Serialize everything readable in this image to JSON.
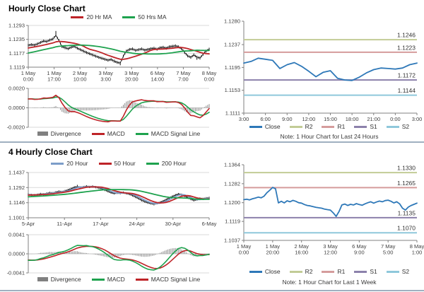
{
  "separators": {
    "color": "#9fb0c0"
  },
  "chart_data": [
    {
      "type": "candlestick",
      "title": "Hourly Close Chart",
      "ylim": [
        1.1119,
        1.1293
      ],
      "yticks": [
        1.1293,
        1.1235,
        1.1177,
        1.1119
      ],
      "x_labels": [
        [
          "1 May",
          "0:00"
        ],
        [
          "1 May",
          "17:00"
        ],
        [
          "2 May",
          "10:00"
        ],
        [
          "3 May",
          "3:00"
        ],
        [
          "3 May",
          "20:00"
        ],
        [
          "6 May",
          "14:00"
        ],
        [
          "7 May",
          "7:00"
        ],
        [
          "8 May",
          "0:00"
        ]
      ],
      "close": [
        1.121,
        1.1213,
        1.1211,
        1.1216,
        1.1222,
        1.1228,
        1.1226,
        1.1232,
        1.1236,
        1.1252,
        1.123,
        1.1205,
        1.12,
        1.1196,
        1.1202,
        1.1206,
        1.1198,
        1.1192,
        1.1186,
        1.118,
        1.1175,
        1.117,
        1.1165,
        1.116,
        1.1156,
        1.1152,
        1.1148,
        1.1151,
        1.1144,
        1.1139,
        1.1136,
        1.1165,
        1.1186,
        1.1193,
        1.1195,
        1.1189,
        1.1192,
        1.1195,
        1.119,
        1.1193,
        1.1196,
        1.1198,
        1.1194,
        1.12,
        1.1202,
        1.1198,
        1.1204,
        1.1206,
        1.1208,
        1.1204,
        1.1196,
        1.118,
        1.1166,
        1.116,
        1.117,
        1.1161,
        1.1157,
        1.1173,
        1.1186,
        1.1194
      ],
      "spikes": [
        {
          "i": 9,
          "hi": 1.127
        },
        {
          "i": 30,
          "lo": 1.1127
        },
        {
          "i": 55,
          "lo": 1.115
        }
      ],
      "ma_windows": [
        10,
        25
      ],
      "ma_seed": [
        1.114,
        1.1143,
        1.1146,
        1.1149,
        1.1152,
        1.1155,
        1.1158,
        1.1161,
        1.1164,
        1.1167,
        1.117,
        1.1173,
        1.1176,
        1.1179,
        1.1182,
        1.1185,
        1.1188,
        1.1191,
        1.1194,
        1.1196,
        1.1198,
        1.12,
        1.1202,
        1.1204,
        1.1206
      ],
      "legend": [
        {
          "label": "20 Hr MA",
          "color": "#be2428"
        },
        {
          "label": "50 Hrs MA",
          "color": "#1ea24e"
        }
      ],
      "macd": {
        "fast": 6,
        "slow": 13,
        "signal_period": 5,
        "fit": 0.72,
        "ylim": [
          -0.002,
          0.002
        ],
        "yticks": [
          0.002,
          0.0,
          -0.002
        ]
      },
      "macd_legend": [
        {
          "label": "Divergence",
          "color": "#808080",
          "bar": true
        },
        {
          "label": "MACD",
          "color": "#be2428"
        },
        {
          "label": "MACD Signal Line",
          "color": "#1ea24e"
        }
      ]
    },
    {
      "type": "line",
      "ylim": [
        1.1111,
        1.128
      ],
      "yticks": [
        1.128,
        1.1237,
        1.1195,
        1.1153,
        1.1111
      ],
      "x_labels": [
        "3:00",
        "6:00",
        "9:00",
        "12:00",
        "15:00",
        "18:00",
        "21:00",
        "0:00",
        "3:00"
      ],
      "close": [
        1.1203,
        1.1206,
        1.1212,
        1.121,
        1.1208,
        1.1193,
        1.12,
        1.1204,
        1.1197,
        1.1188,
        1.1178,
        1.1186,
        1.1189,
        1.1175,
        1.1172,
        1.1171,
        1.1177,
        1.1185,
        1.1191,
        1.1194,
        1.1193,
        1.1192,
        1.1194,
        1.12,
        1.1203
      ],
      "pivots": [
        {
          "name": "R2",
          "value": 1.1246,
          "color": "#c2cc96"
        },
        {
          "name": "R1",
          "value": 1.1223,
          "color": "#d59c9c"
        },
        {
          "name": "S1",
          "value": 1.1172,
          "color": "#8c81ab"
        },
        {
          "name": "S2",
          "value": 1.1144,
          "color": "#8fc8db"
        }
      ],
      "legend": [
        {
          "label": "Close",
          "color": "#2e78b8"
        },
        {
          "label": "R2",
          "color": "#c2cc96"
        },
        {
          "label": "R1",
          "color": "#d59c9c"
        },
        {
          "label": "S1",
          "color": "#8c81ab"
        },
        {
          "label": "S2",
          "color": "#8fc8db"
        }
      ],
      "note": "Note: 1 Hour Chart for Last 24 Hours"
    },
    {
      "type": "candlestick",
      "title": "4 Hourly Close Chart",
      "ylim": [
        1.1001,
        1.1437
      ],
      "yticks": [
        1.1437,
        1.1292,
        1.1146,
        1.1001
      ],
      "x_labels": [
        "5-Apr",
        "11-Apr",
        "17-Apr",
        "24-Apr",
        "30-Apr",
        "6-May"
      ],
      "close": [
        1.1225,
        1.1221,
        1.1219,
        1.1223,
        1.123,
        1.1227,
        1.1234,
        1.1241,
        1.1238,
        1.1247,
        1.1254,
        1.125,
        1.1259,
        1.1269,
        1.1281,
        1.1294,
        1.13,
        1.1293,
        1.1297,
        1.1304,
        1.1298,
        1.1302,
        1.1296,
        1.1289,
        1.1281,
        1.1269,
        1.1256,
        1.1243,
        1.1236,
        1.1241,
        1.1239,
        1.1243,
        1.1236,
        1.1229,
        1.1216,
        1.1201,
        1.1186,
        1.1169,
        1.1156,
        1.1146,
        1.1139,
        1.1133,
        1.1141,
        1.1149,
        1.1161,
        1.1176,
        1.1191,
        1.1206,
        1.1219,
        1.1229,
        1.1223,
        1.1211,
        1.1196,
        1.1181,
        1.1169,
        1.1176,
        1.1186,
        1.1183,
        1.1189,
        1.1193
      ],
      "spikes": [
        {
          "i": 16,
          "hi": 1.1318
        },
        {
          "i": 19,
          "hi": 1.1315
        },
        {
          "i": 41,
          "lo": 1.112
        }
      ],
      "ma_windows": [
        3,
        6,
        22
      ],
      "ma_seed": [
        1.118,
        1.1182,
        1.1184,
        1.1186,
        1.1188,
        1.119,
        1.1192,
        1.1194,
        1.1196,
        1.1198,
        1.12,
        1.1202,
        1.1204,
        1.1206,
        1.1208,
        1.121,
        1.1212,
        1.1214,
        1.1216,
        1.1218,
        1.122,
        1.1222
      ],
      "macd_seed": [
        1.1285,
        1.128,
        1.1275,
        1.127,
        1.1265,
        1.126,
        1.1255,
        1.125,
        1.1246,
        1.1242,
        1.1238,
        1.1234,
        1.123,
        1.1228
      ],
      "legend": [
        {
          "label": "20 Hour",
          "color": "#7c9dc9"
        },
        {
          "label": "50 Hour",
          "color": "#be2428"
        },
        {
          "label": "200 Hour",
          "color": "#1ea24e"
        }
      ],
      "macd": {
        "fast": 6,
        "slow": 13,
        "signal_period": 5,
        "fit": 0.85,
        "ylim": [
          -0.0041,
          0.0041
        ],
        "yticks": [
          0.0041,
          0.0,
          -0.0041
        ]
      },
      "macd_legend": [
        {
          "label": "Divergence",
          "color": "#808080",
          "bar": true
        },
        {
          "label": "MACD",
          "color": "#1ea24e"
        },
        {
          "label": "MACD Signal Line",
          "color": "#be2428"
        }
      ]
    },
    {
      "type": "line",
      "ylim": [
        1.1037,
        1.1364
      ],
      "yticks": [
        1.1364,
        1.1282,
        1.12,
        1.1119,
        1.1037
      ],
      "x_labels": [
        [
          "1 May",
          "0:00"
        ],
        [
          "1 May",
          "20:00"
        ],
        [
          "2 May",
          "16:00"
        ],
        [
          "3 May",
          "12:00"
        ],
        [
          "6 May",
          "9:00"
        ],
        [
          "7 May",
          "5:00"
        ],
        [
          "8 May",
          "1:00"
        ]
      ],
      "close": [
        1.1213,
        1.1215,
        1.1212,
        1.1217,
        1.122,
        1.1224,
        1.1221,
        1.1228,
        1.1243,
        1.1254,
        1.1266,
        1.126,
        1.1199,
        1.1206,
        1.1199,
        1.1208,
        1.1204,
        1.121,
        1.1206,
        1.12,
        1.1198,
        1.1192,
        1.1188,
        1.1186,
        1.1183,
        1.118,
        1.1178,
        1.1176,
        1.1172,
        1.117,
        1.1168,
        1.1156,
        1.1141,
        1.1162,
        1.119,
        1.1194,
        1.1188,
        1.1193,
        1.119,
        1.1196,
        1.1192,
        1.1189,
        1.1195,
        1.12,
        1.1204,
        1.1198,
        1.1203,
        1.1207,
        1.1204,
        1.1209,
        1.1211,
        1.1206,
        1.1199,
        1.1204,
        1.1195,
        1.1176,
        1.1168,
        1.1181,
        1.1188,
        1.1193,
        1.1198
      ],
      "pivots": [
        {
          "name": "R2",
          "value": 1.133,
          "color": "#c2cc96"
        },
        {
          "name": "R1",
          "value": 1.1265,
          "color": "#d59c9c"
        },
        {
          "name": "S1",
          "value": 1.1135,
          "color": "#8c81ab"
        },
        {
          "name": "S2",
          "value": 1.107,
          "color": "#8fc8db"
        }
      ],
      "legend": [
        {
          "label": "Close",
          "color": "#2e78b8"
        },
        {
          "label": "R2",
          "color": "#c2cc96"
        },
        {
          "label": "R1",
          "color": "#d59c9c"
        },
        {
          "label": "S1",
          "color": "#8c81ab"
        },
        {
          "label": "S2",
          "color": "#8fc8db"
        }
      ],
      "note": "Note: 1 Hour Chart for Last 1 Week"
    }
  ]
}
